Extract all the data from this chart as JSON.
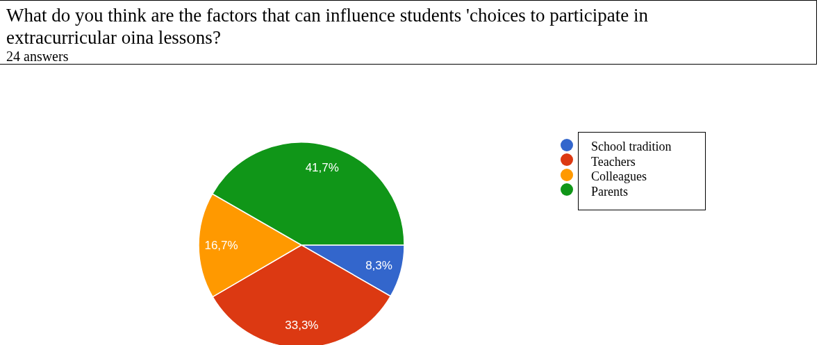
{
  "chart_data": {
    "type": "pie",
    "title": "What do you think are the factors that can influence students 'choices to participate in extracurricular oina lessons?",
    "subtitle": "24 answers",
    "categories": [
      "School tradition",
      "Teachers",
      "Colleagues",
      "Parents"
    ],
    "values": [
      8.3,
      33.3,
      16.7,
      41.7
    ],
    "colors": [
      "#3366cc",
      "#dc3912",
      "#ff9900",
      "#109618"
    ],
    "value_labels": [
      "8,3%",
      "33,3%",
      "16,7%",
      "41,7%"
    ],
    "legend": "right"
  }
}
